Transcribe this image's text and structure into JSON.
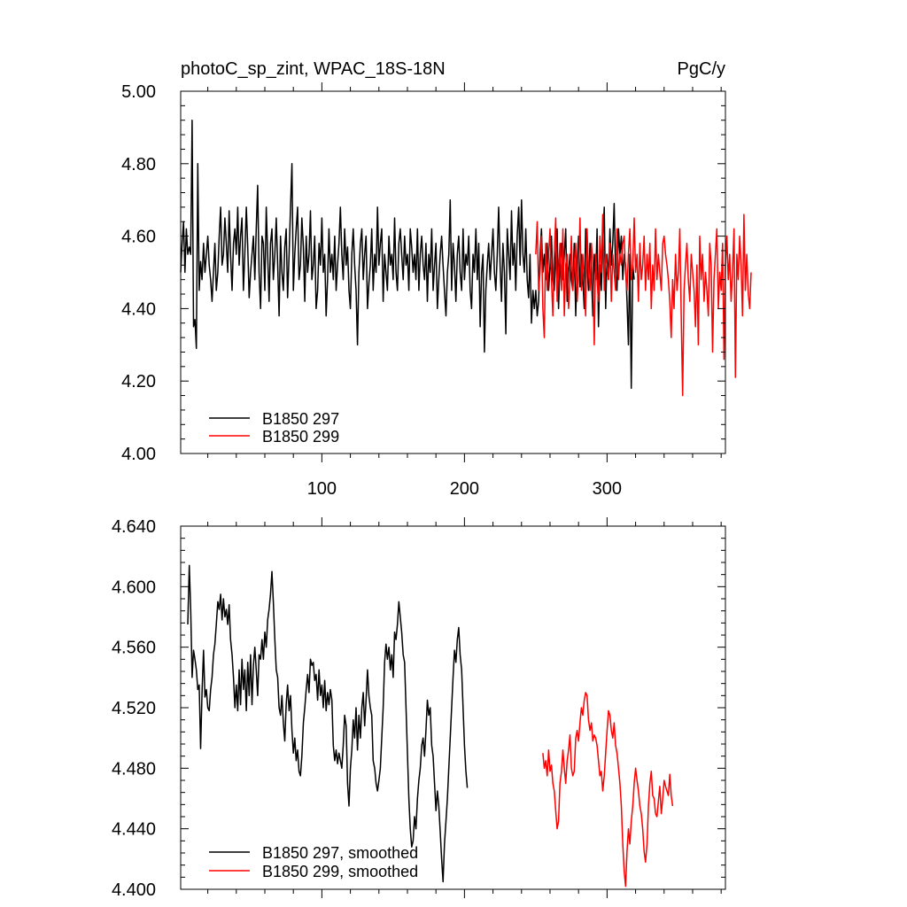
{
  "colors": {
    "series_black": "#000000",
    "series_red": "#ff0000"
  },
  "chart_data": [
    {
      "type": "line",
      "title": "photoC_sp_zint, WPAC_18S-18N",
      "units": "PgC/y",
      "xlim": [
        1,
        383
      ],
      "ylim": [
        4.0,
        5.0
      ],
      "xticks": [
        100,
        200,
        300
      ],
      "xtick_labels": [
        "100",
        "200",
        "300"
      ],
      "yticks": [
        4.0,
        4.2,
        4.4,
        4.6,
        4.8,
        5.0
      ],
      "ytick_labels": [
        "4.00",
        "4.20",
        "4.40",
        "4.60",
        "4.80",
        "5.00"
      ],
      "legend_position": "bottom-left",
      "series": [
        {
          "name": "B1850 297",
          "color": "#000000",
          "x_start": 1,
          "values": [
            4.5,
            4.58,
            4.64,
            4.5,
            4.62,
            4.55,
            4.57,
            4.55,
            4.92,
            4.35,
            4.37,
            4.29,
            4.8,
            4.45,
            4.53,
            4.48,
            4.58,
            4.5,
            4.55,
            4.6,
            4.52,
            4.48,
            4.42,
            4.5,
            4.58,
            4.45,
            4.5,
            4.6,
            4.68,
            4.52,
            4.55,
            4.65,
            4.58,
            4.5,
            4.67,
            4.55,
            4.45,
            4.58,
            4.62,
            4.55,
            4.68,
            4.52,
            4.6,
            4.65,
            4.45,
            4.55,
            4.68,
            4.57,
            4.43,
            4.5,
            4.55,
            4.6,
            4.48,
            4.62,
            4.74,
            4.5,
            4.4,
            4.6,
            4.58,
            4.45,
            4.68,
            4.55,
            4.42,
            4.58,
            4.62,
            4.48,
            4.55,
            4.65,
            4.52,
            4.38,
            4.6,
            4.5,
            4.45,
            4.57,
            4.62,
            4.43,
            4.55,
            4.68,
            4.8,
            4.45,
            4.55,
            4.62,
            4.68,
            4.48,
            4.52,
            4.65,
            4.57,
            4.42,
            4.6,
            4.5,
            4.55,
            4.67,
            4.48,
            4.52,
            4.6,
            4.4,
            4.45,
            4.58,
            4.52,
            4.65,
            4.5,
            4.55,
            4.38,
            4.48,
            4.62,
            4.5,
            4.55,
            4.48,
            4.6,
            4.45,
            4.52,
            4.58,
            4.68,
            4.55,
            4.48,
            4.62,
            4.52,
            4.57,
            4.45,
            4.4,
            4.55,
            4.62,
            4.52,
            4.45,
            4.3,
            4.5,
            4.58,
            4.62,
            4.48,
            4.55,
            4.6,
            4.4,
            4.47,
            4.52,
            4.62,
            4.45,
            4.55,
            4.5,
            4.68,
            4.52,
            4.58,
            4.62,
            4.42,
            4.55,
            4.5,
            4.45,
            4.6,
            4.52,
            4.55,
            4.48,
            4.65,
            4.5,
            4.45,
            4.58,
            4.62,
            4.55,
            4.48,
            4.6,
            4.52,
            4.55,
            4.45,
            4.62,
            4.57,
            4.5,
            4.55,
            4.48,
            4.62,
            4.45,
            4.55,
            4.6,
            4.52,
            4.48,
            4.58,
            4.42,
            4.55,
            4.5,
            4.62,
            4.45,
            4.52,
            4.58,
            4.4,
            4.48,
            4.55,
            4.6,
            4.52,
            4.45,
            4.38,
            4.5,
            4.55,
            4.7,
            4.45,
            4.58,
            4.52,
            4.42,
            4.55,
            4.6,
            4.5,
            4.45,
            4.62,
            4.48,
            4.55,
            4.52,
            4.6,
            4.45,
            4.4,
            4.55,
            4.5,
            4.62,
            4.48,
            4.58,
            4.35,
            4.5,
            4.55,
            4.28,
            4.45,
            4.52,
            4.58,
            4.48,
            4.55,
            4.62,
            4.5,
            4.45,
            4.55,
            4.68,
            4.52,
            4.42,
            4.58,
            4.5,
            4.33,
            4.62,
            4.55,
            4.48,
            4.67,
            4.52,
            4.58,
            4.45,
            4.6,
            4.68,
            4.52,
            4.7,
            4.55,
            4.5,
            4.62,
            4.48,
            4.43,
            4.55,
            4.36,
            4.45,
            4.4,
            4.45,
            4.38,
            4.42,
            4.55,
            4.62,
            4.5,
            4.55,
            4.48,
            4.58,
            4.45,
            4.52,
            4.6,
            4.48,
            4.45,
            4.55,
            4.62,
            4.4,
            4.52,
            4.58,
            4.48,
            4.55,
            4.62,
            4.42,
            4.5,
            4.55,
            4.48,
            4.45,
            4.58,
            4.38,
            4.52,
            4.6,
            4.46,
            4.55,
            4.48,
            4.4,
            4.62,
            4.52,
            4.45,
            4.58,
            4.5,
            4.38,
            4.55,
            4.48,
            4.62,
            4.35,
            4.52,
            4.45,
            4.58,
            4.68,
            4.4,
            4.55,
            4.48,
            4.62,
            4.52,
            4.58,
            4.69,
            4.5,
            4.45,
            4.62,
            4.55,
            4.6,
            4.48,
            4.55,
            4.52,
            4.42,
            4.3,
            4.55,
            4.18,
            4.52,
            4.48
          ]
        },
        {
          "name": "B1850 299",
          "color": "#ff0000",
          "x_start": 250,
          "values": [
            4.55,
            4.64,
            4.45,
            4.5,
            4.6,
            4.4,
            4.32,
            4.58,
            4.45,
            4.55,
            4.62,
            4.48,
            4.38,
            4.55,
            4.65,
            4.42,
            4.5,
            4.58,
            4.45,
            4.62,
            4.38,
            4.52,
            4.55,
            4.4,
            4.48,
            4.6,
            4.45,
            4.52,
            4.58,
            4.42,
            4.5,
            4.65,
            4.45,
            4.55,
            4.48,
            4.38,
            4.62,
            4.5,
            4.45,
            4.58,
            4.52,
            4.3,
            4.55,
            4.48,
            4.42,
            4.6,
            4.5,
            4.66,
            4.45,
            4.55,
            4.52,
            4.48,
            4.58,
            4.42,
            4.55,
            4.5,
            4.45,
            4.62,
            4.48,
            4.55,
            4.52,
            4.58,
            4.6,
            4.5,
            4.45,
            4.55,
            4.62,
            4.48,
            4.52,
            4.65,
            4.5,
            4.55,
            4.42,
            4.58,
            4.48,
            4.52,
            4.6,
            4.45,
            4.55,
            4.48,
            4.58,
            4.4,
            4.52,
            4.45,
            4.62,
            4.48,
            4.55,
            4.5,
            4.45,
            4.58,
            4.6,
            4.55,
            4.52,
            4.48,
            4.42,
            4.32,
            4.48,
            4.4,
            4.55,
            4.45,
            4.5,
            4.62,
            4.38,
            4.16,
            4.45,
            4.52,
            4.58,
            4.48,
            4.42,
            4.55,
            4.5,
            4.45,
            4.35,
            4.52,
            4.3,
            4.6,
            4.48,
            4.55,
            4.42,
            4.5,
            4.45,
            4.38,
            4.58,
            4.52,
            4.28,
            4.48,
            4.55,
            4.62,
            4.4,
            4.5,
            4.45,
            4.58,
            4.26,
            4.52,
            4.6,
            4.48,
            4.55,
            4.42,
            4.5,
            4.62,
            4.21,
            4.55,
            4.48,
            4.6,
            4.52,
            4.38,
            4.66,
            4.45,
            4.55,
            4.44,
            4.4,
            4.5
          ]
        }
      ]
    },
    {
      "type": "line",
      "title": "",
      "xlim": [
        1,
        383
      ],
      "ylim": [
        4.4,
        4.64
      ],
      "yticks": [
        4.4,
        4.44,
        4.48,
        4.52,
        4.56,
        4.6,
        4.64
      ],
      "ytick_labels": [
        "4.400",
        "4.440",
        "4.480",
        "4.520",
        "4.560",
        "4.600",
        "4.640"
      ],
      "legend_position": "bottom-left",
      "series": [
        {
          "name": "B1850 297, smoothed",
          "color": "#000000",
          "x_start": 6,
          "values": [
            4.575,
            4.614,
            4.585,
            4.54,
            4.558,
            4.552,
            4.545,
            4.532,
            4.535,
            4.493,
            4.53,
            4.558,
            4.527,
            4.532,
            4.52,
            4.518,
            4.532,
            4.54,
            4.555,
            4.562,
            4.575,
            4.59,
            4.585,
            4.595,
            4.578,
            4.592,
            4.58,
            4.585,
            4.575,
            4.588,
            4.565,
            4.555,
            4.54,
            4.52,
            4.535,
            4.518,
            4.545,
            4.522,
            4.552,
            4.532,
            4.545,
            4.518,
            4.55,
            4.528,
            4.555,
            4.522,
            4.548,
            4.56,
            4.545,
            4.528,
            4.555,
            4.552,
            4.565,
            4.552,
            4.57,
            4.56,
            4.578,
            4.585,
            4.595,
            4.61,
            4.59,
            4.565,
            4.545,
            4.54,
            4.52,
            4.515,
            4.528,
            4.51,
            4.498,
            4.522,
            4.535,
            4.518,
            4.528,
            4.505,
            4.49,
            4.5,
            4.485,
            4.492,
            4.478,
            4.475,
            4.488,
            4.51,
            4.52,
            4.532,
            4.542,
            4.53,
            4.552,
            4.548,
            4.55,
            4.538,
            4.542,
            4.525,
            4.545,
            4.528,
            4.535,
            4.52,
            4.538,
            4.518,
            4.53,
            4.522,
            4.532,
            4.525,
            4.495,
            4.485,
            4.492,
            4.483,
            4.49,
            4.485,
            4.48,
            4.495,
            4.515,
            4.508,
            4.47,
            4.455,
            4.48,
            4.492,
            4.512,
            4.5,
            4.52,
            4.492,
            4.515,
            4.5,
            4.52,
            4.53,
            4.508,
            4.525,
            4.545,
            4.528,
            4.52,
            4.515,
            4.485,
            4.48,
            4.47,
            4.465,
            4.472,
            4.48,
            4.5,
            4.52,
            4.55,
            4.562,
            4.552,
            4.56,
            4.545,
            4.555,
            4.54,
            4.57,
            4.565,
            4.575,
            4.59,
            4.58,
            4.57,
            4.555,
            4.55,
            4.52,
            4.49,
            4.46,
            4.44,
            4.428,
            4.432,
            4.448,
            4.44,
            4.46,
            4.472,
            4.48,
            4.495,
            4.5,
            4.488,
            4.505,
            4.525,
            4.515,
            4.52,
            4.495,
            4.488,
            4.47,
            4.452,
            4.465,
            4.455,
            4.438,
            4.42,
            4.405,
            4.43,
            4.445,
            4.46,
            4.48,
            4.5,
            4.52,
            4.54,
            4.558,
            4.55,
            4.565,
            4.573,
            4.555,
            4.545,
            4.52,
            4.495,
            4.478,
            4.467
          ]
        },
        {
          "name": "B1850 299, smoothed",
          "color": "#ff0000",
          "x_start": 255,
          "values": [
            4.49,
            4.48,
            4.485,
            4.475,
            4.492,
            4.478,
            4.482,
            4.47,
            4.465,
            4.452,
            4.44,
            4.445,
            4.47,
            4.478,
            4.492,
            4.48,
            4.47,
            4.485,
            4.492,
            4.502,
            4.48,
            4.475,
            4.478,
            4.5,
            4.505,
            4.498,
            4.51,
            4.52,
            4.515,
            4.525,
            4.53,
            4.528,
            4.512,
            4.505,
            4.51,
            4.498,
            4.502,
            4.5,
            4.495,
            4.485,
            4.475,
            4.478,
            4.465,
            4.475,
            4.49,
            4.505,
            4.518,
            4.515,
            4.505,
            4.5,
            4.51,
            4.495,
            4.49,
            4.48,
            4.47,
            4.455,
            4.43,
            4.412,
            4.402,
            4.425,
            4.44,
            4.43,
            4.445,
            4.455,
            4.47,
            4.48,
            4.472,
            4.465,
            4.455,
            4.45,
            4.44,
            4.425,
            4.418,
            4.43,
            4.455,
            4.47,
            4.478,
            4.462,
            4.46,
            4.45,
            4.448,
            4.458,
            4.468,
            4.45,
            4.46,
            4.472,
            4.468,
            4.465,
            4.462,
            4.476,
            4.462,
            4.455
          ]
        }
      ]
    }
  ]
}
